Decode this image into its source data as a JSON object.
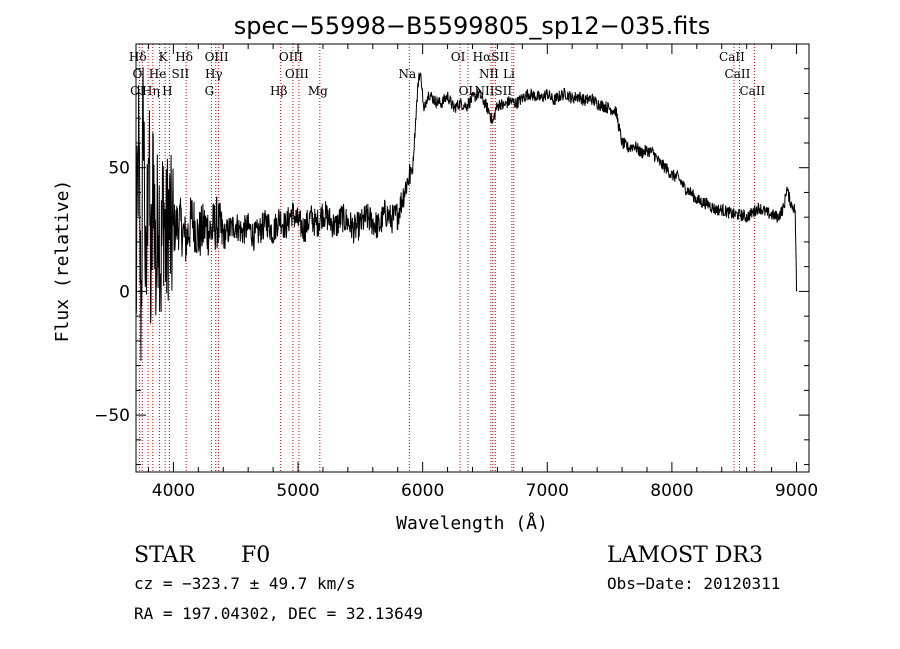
{
  "chart_data": {
    "type": "line",
    "title": "spec−55998−B5599805_sp12−035.fits",
    "xlabel": "Wavelength (Å)",
    "ylabel": "Flux (relative)",
    "xlim": [
      3700,
      9100
    ],
    "ylim": [
      -73,
      100
    ],
    "xticks": [
      4000,
      5000,
      6000,
      7000,
      8000,
      9000
    ],
    "yticks": [
      -50,
      0,
      50
    ],
    "grid": false,
    "series": [
      {
        "name": "flux",
        "x": [
          3700,
          3720,
          3740,
          3760,
          3780,
          3800,
          3820,
          3840,
          3860,
          3880,
          3900,
          3920,
          3940,
          3960,
          3980,
          4000,
          4050,
          4100,
          4150,
          4200,
          4250,
          4300,
          4350,
          4400,
          4450,
          4500,
          4550,
          4600,
          4650,
          4700,
          4750,
          4800,
          4850,
          4900,
          4950,
          5000,
          5050,
          5100,
          5150,
          5200,
          5250,
          5300,
          5350,
          5400,
          5450,
          5500,
          5550,
          5600,
          5650,
          5700,
          5750,
          5800,
          5850,
          5880,
          5920,
          5950,
          5970,
          5990,
          6010,
          6030,
          6050,
          6100,
          6150,
          6200,
          6250,
          6300,
          6350,
          6400,
          6450,
          6500,
          6540,
          6563,
          6590,
          6620,
          6650,
          6700,
          6750,
          6800,
          6850,
          6900,
          6950,
          7000,
          7050,
          7100,
          7150,
          7200,
          7250,
          7300,
          7350,
          7400,
          7450,
          7500,
          7550,
          7600,
          7650,
          7700,
          7750,
          7800,
          7850,
          7900,
          7950,
          8000,
          8050,
          8100,
          8150,
          8200,
          8250,
          8300,
          8350,
          8400,
          8450,
          8500,
          8550,
          8600,
          8650,
          8700,
          8750,
          8800,
          8850,
          8900,
          8920,
          8940,
          8960,
          8980,
          8990,
          9000
        ],
        "y": [
          -5,
          60,
          -10,
          80,
          -12,
          70,
          -5,
          55,
          5,
          40,
          10,
          38,
          15,
          32,
          20,
          25,
          28,
          20,
          30,
          22,
          26,
          24,
          28,
          22,
          25,
          27,
          24,
          26,
          22,
          25,
          28,
          24,
          30,
          26,
          32,
          28,
          25,
          30,
          27,
          32,
          29,
          26,
          30,
          28,
          25,
          27,
          30,
          28,
          26,
          32,
          29,
          31,
          40,
          45,
          50,
          74,
          88,
          86,
          72,
          78,
          80,
          77,
          76,
          79,
          74,
          76,
          75,
          78,
          80,
          76,
          72,
          68,
          74,
          76,
          75,
          77,
          76,
          78,
          80,
          79,
          78,
          80,
          77,
          79,
          80,
          78,
          79,
          77,
          78,
          76,
          75,
          74,
          73,
          60,
          58,
          59,
          56,
          57,
          56,
          52,
          50,
          47,
          46,
          42,
          40,
          37,
          36,
          35,
          33,
          33,
          32,
          31,
          31,
          30,
          32,
          34,
          32,
          31,
          30,
          34,
          42,
          38,
          35,
          34,
          32,
          0
        ]
      }
    ],
    "emission_lines": [
      {
        "label": "Hδ",
        "wavelength": 3730,
        "row": 0
      },
      {
        "label": "K",
        "wavelength": 3934,
        "row": 0
      },
      {
        "label": "Hδ",
        "wavelength": 4102,
        "row": 0
      },
      {
        "label": "OIII",
        "wavelength": 4363,
        "row": 0
      },
      {
        "label": "OIII",
        "wavelength": 4959,
        "row": 0
      },
      {
        "label": "OI",
        "wavelength": 6300,
        "row": 0
      },
      {
        "label": "HαSII",
        "wavelength": 6563,
        "row": 0
      },
      {
        "label": "CaII",
        "wavelength": 8498,
        "row": 0
      },
      {
        "label": "O",
        "wavelength": 3727,
        "row": 1
      },
      {
        "label": "He",
        "wavelength": 3889,
        "row": 1
      },
      {
        "label": "SII",
        "wavelength": 4072,
        "row": 1
      },
      {
        "label": "Hγ",
        "wavelength": 4340,
        "row": 1
      },
      {
        "label": "OIII",
        "wavelength": 5007,
        "row": 1
      },
      {
        "label": "Na",
        "wavelength": 5893,
        "row": 1
      },
      {
        "label": "NII",
        "wavelength": 6548,
        "row": 1
      },
      {
        "label": "Li",
        "wavelength": 6708,
        "row": 1
      },
      {
        "label": "CaII",
        "wavelength": 8542,
        "row": 1
      },
      {
        "label": "OI",
        "wavelength": 3727,
        "row": 2
      },
      {
        "label": "Hη",
        "wavelength": 3835,
        "row": 2
      },
      {
        "label": "H",
        "wavelength": 3968,
        "row": 2
      },
      {
        "label": "G",
        "wavelength": 4305,
        "row": 2
      },
      {
        "label": "Hβ",
        "wavelength": 4861,
        "row": 2
      },
      {
        "label": "Mg",
        "wavelength": 5175,
        "row": 2
      },
      {
        "label": "OI",
        "wavelength": 6363,
        "row": 2
      },
      {
        "label": "NIISII",
        "wavelength": 6583,
        "row": 2
      },
      {
        "label": "CaII",
        "wavelength": 8662,
        "row": 2
      }
    ],
    "line_positions": [
      3727,
      3750,
      3797,
      3835,
      3889,
      3934,
      3968,
      4102,
      4305,
      4340,
      4363,
      4861,
      4959,
      5007,
      5175,
      5893,
      6300,
      6363,
      6548,
      6563,
      6583,
      6716,
      6731,
      8498,
      8542,
      8662
    ],
    "line_color": "#cc0000"
  },
  "info": {
    "object_class": "STAR",
    "subclass": "F0",
    "survey": "LAMOST DR3",
    "redshift_text": "cz = −323.7 ± 49.7 km/s",
    "obs_date_text": "Obs−Date: 20120311",
    "coords_text": "RA = 197.04302, DEC =  32.13649"
  }
}
